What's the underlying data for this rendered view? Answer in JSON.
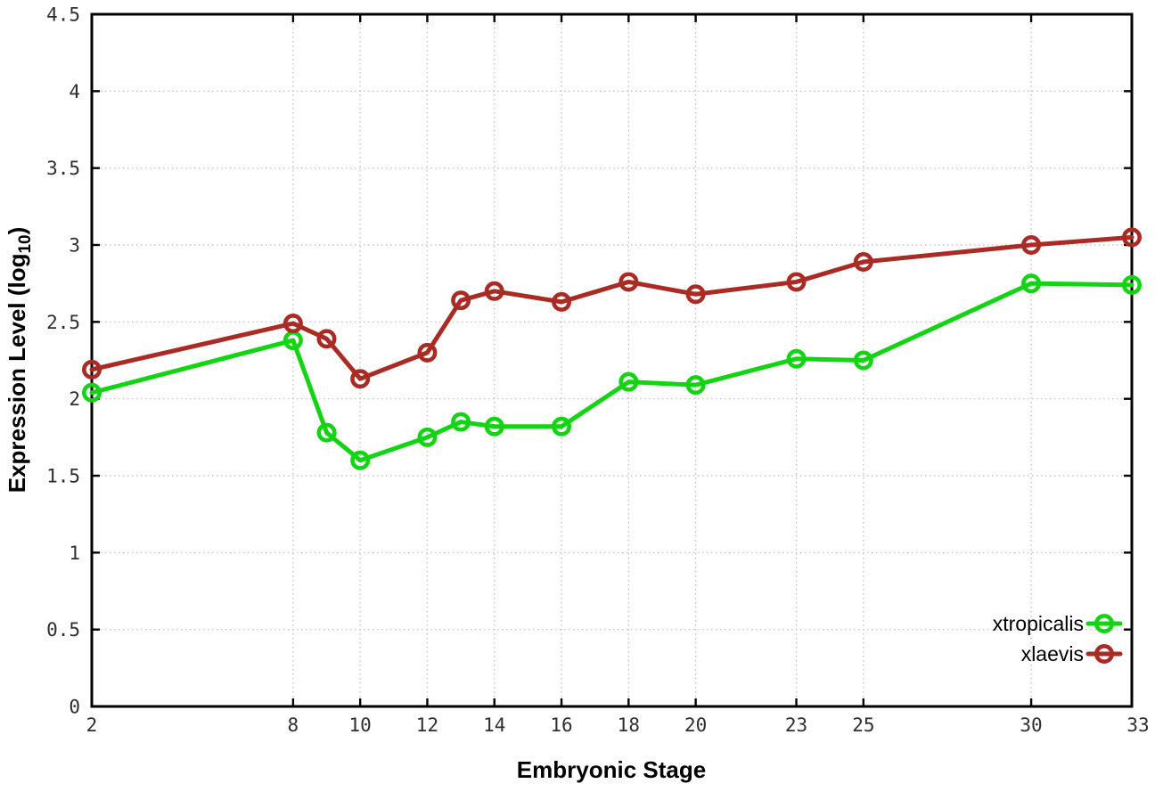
{
  "figure": {
    "background_color": "#ffffff",
    "axis_color": "#000000",
    "grid_color": "#c6c6c6",
    "tick_label_color": "#2e2e2e"
  },
  "chart_data": {
    "type": "line",
    "title": "",
    "xlabel": "Embryonic Stage",
    "ylabel": "Expression Level (log10)",
    "ylabel_parts": {
      "pre": "Expression Level (log",
      "sub": "10",
      "post": ")"
    },
    "x": [
      2,
      8,
      9,
      10,
      12,
      13,
      14,
      16,
      18,
      20,
      23,
      25,
      30,
      33
    ],
    "series": [
      {
        "name": "xtropicalis",
        "color": "#12d412",
        "values": [
          2.04,
          2.38,
          1.78,
          1.6,
          1.75,
          1.85,
          1.82,
          1.82,
          2.11,
          2.09,
          2.26,
          2.25,
          2.75,
          2.74
        ]
      },
      {
        "name": "xlaevis",
        "color": "#aa2b24",
        "values": [
          2.19,
          2.49,
          2.39,
          2.13,
          2.3,
          2.64,
          2.7,
          2.63,
          2.76,
          2.68,
          2.76,
          2.89,
          3.0,
          3.05
        ]
      }
    ],
    "xticks": [
      2,
      8,
      10,
      12,
      14,
      16,
      18,
      20,
      23,
      25,
      30,
      33
    ],
    "xtick_labels": [
      "2",
      "8",
      "10",
      "12",
      "14",
      "16",
      "18",
      "20",
      "23",
      "25",
      "30",
      "33"
    ],
    "yticks": [
      0,
      0.5,
      1,
      1.5,
      2,
      2.5,
      3,
      3.5,
      4,
      4.5
    ],
    "ytick_labels": [
      "0",
      "0.5",
      "1",
      "1.5",
      "2",
      "2.5",
      "3",
      "3.5",
      "4",
      "4.5"
    ],
    "xlim": [
      2,
      33
    ],
    "ylim": [
      0,
      4.5
    ],
    "grid": true,
    "legend_position": "inside-bottom-right",
    "legend": [
      "xtropicalis",
      "xlaevis"
    ],
    "marker": "open-circle"
  }
}
